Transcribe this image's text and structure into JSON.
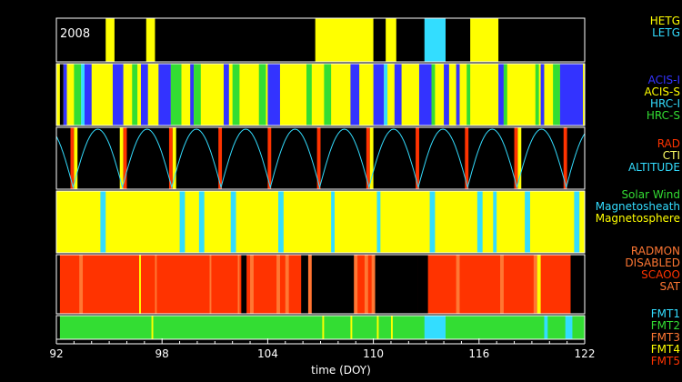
{
  "chart_data": {
    "type": "timeline",
    "year_label": "2008",
    "xlabel": "time (DOY)",
    "xlim": [
      92,
      122
    ],
    "xticks": [
      92,
      98,
      104,
      110,
      116,
      122
    ],
    "colors": {
      "yellow": "#ffff00",
      "cyan": "#33ddff",
      "blue": "#3333ff",
      "green": "#33dd33",
      "red": "#ff3300",
      "orange": "#ff7733",
      "black": "#000000"
    },
    "panels": [
      {
        "name": "grating",
        "legend": [
          "HETG",
          "LETG"
        ],
        "background": "black",
        "segments": [
          [
            94.8,
            95.3,
            "yellow"
          ],
          [
            97.1,
            97.6,
            "yellow"
          ],
          [
            106.7,
            110.0,
            "yellow"
          ],
          [
            110.7,
            111.3,
            "yellow"
          ],
          [
            112.9,
            114.1,
            "cyan"
          ],
          [
            115.5,
            117.1,
            "yellow"
          ]
        ]
      },
      {
        "name": "instrument",
        "legend": [
          "ACIS-I",
          "ACIS-S",
          "HRC-I",
          "HRC-S"
        ],
        "background": "yellow",
        "segments": [
          [
            92.2,
            92.4,
            "black"
          ],
          [
            92.4,
            92.6,
            "blue"
          ],
          [
            92.6,
            93.0,
            "yellow"
          ],
          [
            93.0,
            93.4,
            "green"
          ],
          [
            93.4,
            93.6,
            "cyan"
          ],
          [
            93.6,
            94.0,
            "blue"
          ],
          [
            95.2,
            95.8,
            "blue"
          ],
          [
            96.3,
            96.6,
            "green"
          ],
          [
            96.8,
            97.2,
            "blue"
          ],
          [
            97.8,
            98.5,
            "blue"
          ],
          [
            98.5,
            99.1,
            "green"
          ],
          [
            99.6,
            99.8,
            "blue"
          ],
          [
            99.8,
            100.2,
            "green"
          ],
          [
            101.5,
            101.8,
            "blue"
          ],
          [
            102.0,
            102.4,
            "green"
          ],
          [
            103.5,
            103.9,
            "green"
          ],
          [
            104.0,
            104.7,
            "blue"
          ],
          [
            106.2,
            106.5,
            "green"
          ],
          [
            107.2,
            107.6,
            "green"
          ],
          [
            108.7,
            109.2,
            "blue"
          ],
          [
            110.0,
            110.6,
            "blue"
          ],
          [
            110.6,
            110.8,
            "cyan"
          ],
          [
            111.2,
            111.6,
            "blue"
          ],
          [
            112.6,
            113.3,
            "blue"
          ],
          [
            113.3,
            113.5,
            "green"
          ],
          [
            114.0,
            114.3,
            "blue"
          ],
          [
            114.7,
            114.9,
            "blue"
          ],
          [
            115.3,
            115.5,
            "green"
          ],
          [
            117.1,
            117.4,
            "blue"
          ],
          [
            117.4,
            117.6,
            "green"
          ],
          [
            119.2,
            119.4,
            "green"
          ],
          [
            119.5,
            119.7,
            "blue"
          ],
          [
            120.2,
            120.6,
            "green"
          ],
          [
            120.6,
            121.9,
            "blue"
          ]
        ]
      },
      {
        "name": "radiation",
        "legend": [
          "RAD",
          "CTI",
          "ALTITUDE"
        ],
        "background": "black",
        "perigees": [
          92.95,
          95.75,
          98.55,
          101.35,
          104.15,
          106.95,
          109.75,
          112.55,
          115.35,
          118.15,
          120.95
        ],
        "segments": [
          [
            92.8,
            93.0,
            "red"
          ],
          [
            93.0,
            93.2,
            "yellow"
          ],
          [
            95.6,
            95.8,
            "yellow"
          ],
          [
            95.8,
            96.0,
            "red"
          ],
          [
            98.4,
            98.6,
            "red"
          ],
          [
            98.6,
            98.8,
            "yellow"
          ],
          [
            101.2,
            101.4,
            "red"
          ],
          [
            104.0,
            104.2,
            "red"
          ],
          [
            106.8,
            107.0,
            "red"
          ],
          [
            109.6,
            109.8,
            "red"
          ],
          [
            109.8,
            110.0,
            "yellow"
          ],
          [
            112.4,
            112.6,
            "red"
          ],
          [
            115.2,
            115.4,
            "red"
          ],
          [
            118.0,
            118.2,
            "red"
          ],
          [
            118.2,
            118.4,
            "yellow"
          ],
          [
            120.8,
            121.0,
            "red"
          ]
        ]
      },
      {
        "name": "region",
        "legend": [
          "Solar Wind",
          "Magnetosheath",
          "Magnetosphere"
        ],
        "background": "yellow",
        "segments": [
          [
            94.5,
            94.8,
            "cyan"
          ],
          [
            99.0,
            99.3,
            "cyan"
          ],
          [
            100.1,
            100.4,
            "cyan"
          ],
          [
            101.9,
            102.2,
            "cyan"
          ],
          [
            104.6,
            104.9,
            "cyan"
          ],
          [
            107.6,
            107.8,
            "cyan"
          ],
          [
            110.2,
            110.4,
            "cyan"
          ],
          [
            113.2,
            113.5,
            "cyan"
          ],
          [
            115.9,
            116.2,
            "cyan"
          ],
          [
            116.8,
            117.0,
            "cyan"
          ],
          [
            118.6,
            118.9,
            "cyan"
          ],
          [
            121.4,
            121.7,
            "cyan"
          ]
        ]
      },
      {
        "name": "radmon",
        "legend": [
          "RADMON",
          "DISABLED",
          "SCAOO",
          "SAT"
        ],
        "background": "red",
        "segments": [
          [
            92.0,
            92.2,
            "black"
          ],
          [
            93.3,
            93.5,
            "orange"
          ],
          [
            96.7,
            96.8,
            "yellow"
          ],
          [
            97.6,
            97.7,
            "orange"
          ],
          [
            100.7,
            100.8,
            "orange"
          ],
          [
            102.3,
            102.4,
            "orange"
          ],
          [
            102.5,
            102.8,
            "black"
          ],
          [
            103.0,
            103.2,
            "orange"
          ],
          [
            104.5,
            104.7,
            "orange"
          ],
          [
            105.0,
            105.2,
            "orange"
          ],
          [
            105.9,
            106.3,
            "black"
          ],
          [
            106.3,
            106.5,
            "orange"
          ],
          [
            106.5,
            108.9,
            "black"
          ],
          [
            108.9,
            109.1,
            "orange"
          ],
          [
            109.5,
            109.7,
            "orange"
          ],
          [
            109.9,
            110.1,
            "orange"
          ],
          [
            110.1,
            112.5,
            "black"
          ],
          [
            112.5,
            113.1,
            "black"
          ],
          [
            114.7,
            114.9,
            "orange"
          ],
          [
            117.2,
            117.4,
            "orange"
          ],
          [
            119.1,
            119.3,
            "orange"
          ],
          [
            119.3,
            119.5,
            "yellow"
          ],
          [
            121.2,
            122.0,
            "black"
          ]
        ]
      },
      {
        "name": "format",
        "legend": [
          "FMT1",
          "FMT2",
          "FMT3",
          "FMT4",
          "FMT5"
        ],
        "background": "green",
        "segments": [
          [
            92.0,
            92.2,
            "black"
          ],
          [
            97.4,
            97.5,
            "yellow"
          ],
          [
            107.1,
            107.2,
            "yellow"
          ],
          [
            108.7,
            108.8,
            "yellow"
          ],
          [
            110.2,
            110.3,
            "yellow"
          ],
          [
            111.0,
            111.1,
            "yellow"
          ],
          [
            112.9,
            114.1,
            "cyan"
          ],
          [
            119.7,
            119.9,
            "cyan"
          ],
          [
            120.9,
            121.3,
            "cyan"
          ]
        ]
      }
    ]
  }
}
